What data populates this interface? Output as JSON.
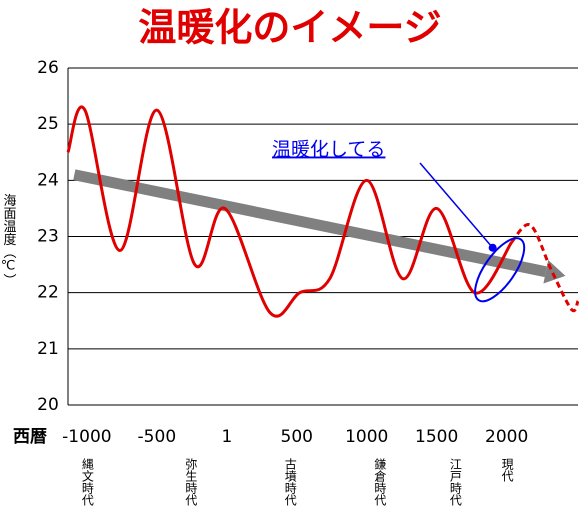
{
  "chart_data": {
    "type": "line",
    "title": "温暖化のイメージ",
    "x_label": "西暦",
    "y_label": "海面温度（℃）",
    "xlim": [
      -1135,
      2510
    ],
    "ylim": [
      20,
      26
    ],
    "xticks": [
      -1000,
      -500,
      1,
      500,
      1000,
      1500,
      2000
    ],
    "yticks": [
      20,
      21,
      22,
      23,
      24,
      25,
      26
    ],
    "grid": true,
    "series": [
      {
        "color": "#e00000",
        "dashed": false,
        "x": [
          -1135,
          -1014,
          -764,
          -500,
          -229,
          -14,
          307,
          521,
          736,
          1000,
          1257,
          1500,
          1771,
          2036
        ],
        "values": [
          24.5,
          25.25,
          22.75,
          25.25,
          22.5,
          23.5,
          21.65,
          22.0,
          22.25,
          24.0,
          22.25,
          23.5,
          22.0,
          22.9
        ]
      },
      {
        "color": "#e00000",
        "dashed": true,
        "x": [
          2036,
          2171,
          2320,
          2464,
          2510
        ],
        "values": [
          22.9,
          23.2,
          22.4,
          21.7,
          21.85
        ]
      }
    ],
    "trend": {
      "color": "#808080",
      "x": [
        -1090,
        2420
      ],
      "values": [
        24.1,
        22.3
      ]
    },
    "annotation": {
      "text": "温暖化してる",
      "color": "#0000ee",
      "x": 1900,
      "y": 22.8
    },
    "eras": [
      {
        "label": "縄文時代",
        "x": -1000
      },
      {
        "label": "弥生時代",
        "x": -260
      },
      {
        "label": "古墳時代",
        "x": 450
      },
      {
        "label": "鎌倉時代",
        "x": 1090
      },
      {
        "label": "江戸時代",
        "x": 1630
      },
      {
        "label": "現代",
        "x": 2000
      }
    ]
  }
}
